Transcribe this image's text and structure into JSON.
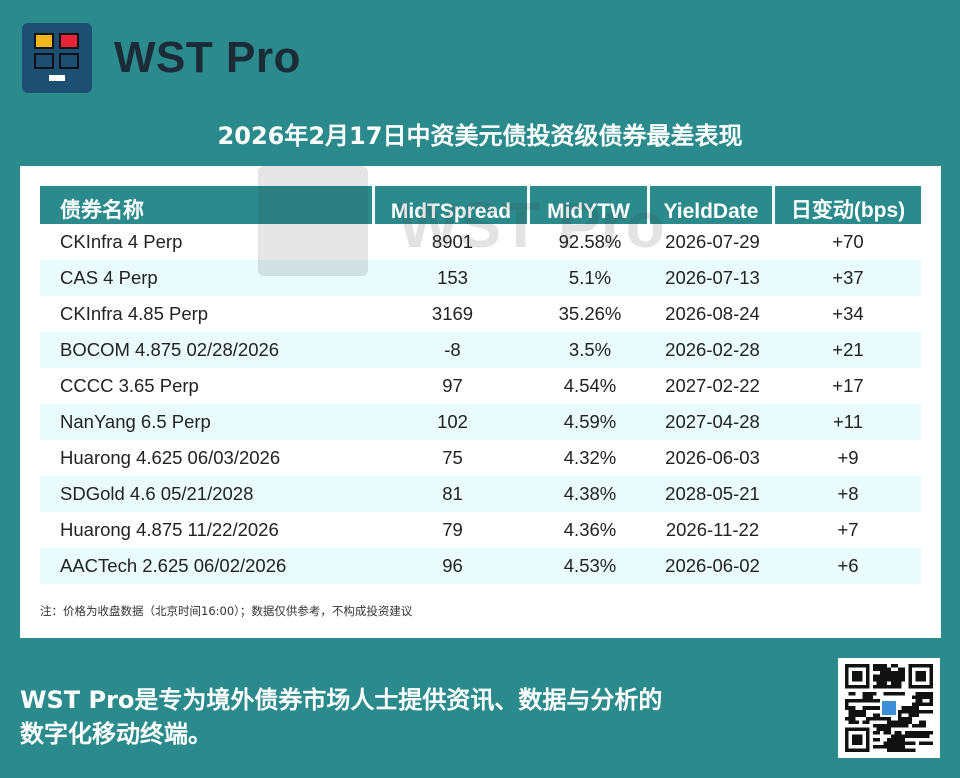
{
  "brand": {
    "name": "WST Pro",
    "logo_colors": [
      "#f0b41c",
      "#e8233a",
      "#1a1a1a",
      "#1a1a1a"
    ]
  },
  "title": "2026年2月17日中资美元债投资级债券最差表现",
  "table": {
    "headers": [
      "债券名称",
      "MidTSpread",
      "MidYTW",
      "YieldDate",
      "日变动(bps)"
    ],
    "rows": [
      [
        "CKInfra 4 Perp",
        "8901",
        "92.58%",
        "2026-07-29",
        "+70"
      ],
      [
        "CAS 4 Perp",
        "153",
        "5.1%",
        "2026-07-13",
        "+37"
      ],
      [
        "CKInfra 4.85 Perp",
        "3169",
        "35.26%",
        "2026-08-24",
        "+34"
      ],
      [
        "BOCOM 4.875 02/28/2026",
        "-8",
        "3.5%",
        "2026-02-28",
        "+21"
      ],
      [
        "CCCC 3.65 Perp",
        "97",
        "4.54%",
        "2027-02-22",
        "+17"
      ],
      [
        "NanYang 6.5 Perp",
        "102",
        "4.59%",
        "2027-04-28",
        "+11"
      ],
      [
        "Huarong 4.625 06/03/2026",
        "75",
        "4.32%",
        "2026-06-03",
        "+9"
      ],
      [
        "SDGold 4.6 05/21/2028",
        "81",
        "4.38%",
        "2028-05-21",
        "+8"
      ],
      [
        "Huarong 4.875 11/22/2026",
        "79",
        "4.36%",
        "2026-11-22",
        "+7"
      ],
      [
        "AACTech 2.625 06/02/2026",
        "96",
        "4.53%",
        "2026-06-02",
        "+6"
      ]
    ]
  },
  "note": "注：价格为收盘数据（北京时间16:00）；数据仅供参考，不构成投资建议",
  "watermark": "WST Pro",
  "slogan": {
    "line1": "WST Pro是专为境外债券市场人士提供资讯、数据与分析的",
    "line2": "数字化移动终端。"
  },
  "colors": {
    "background": "#2b8a8c",
    "header_bg": "#2b8a8c",
    "alt_row": "#e9fbfd"
  }
}
